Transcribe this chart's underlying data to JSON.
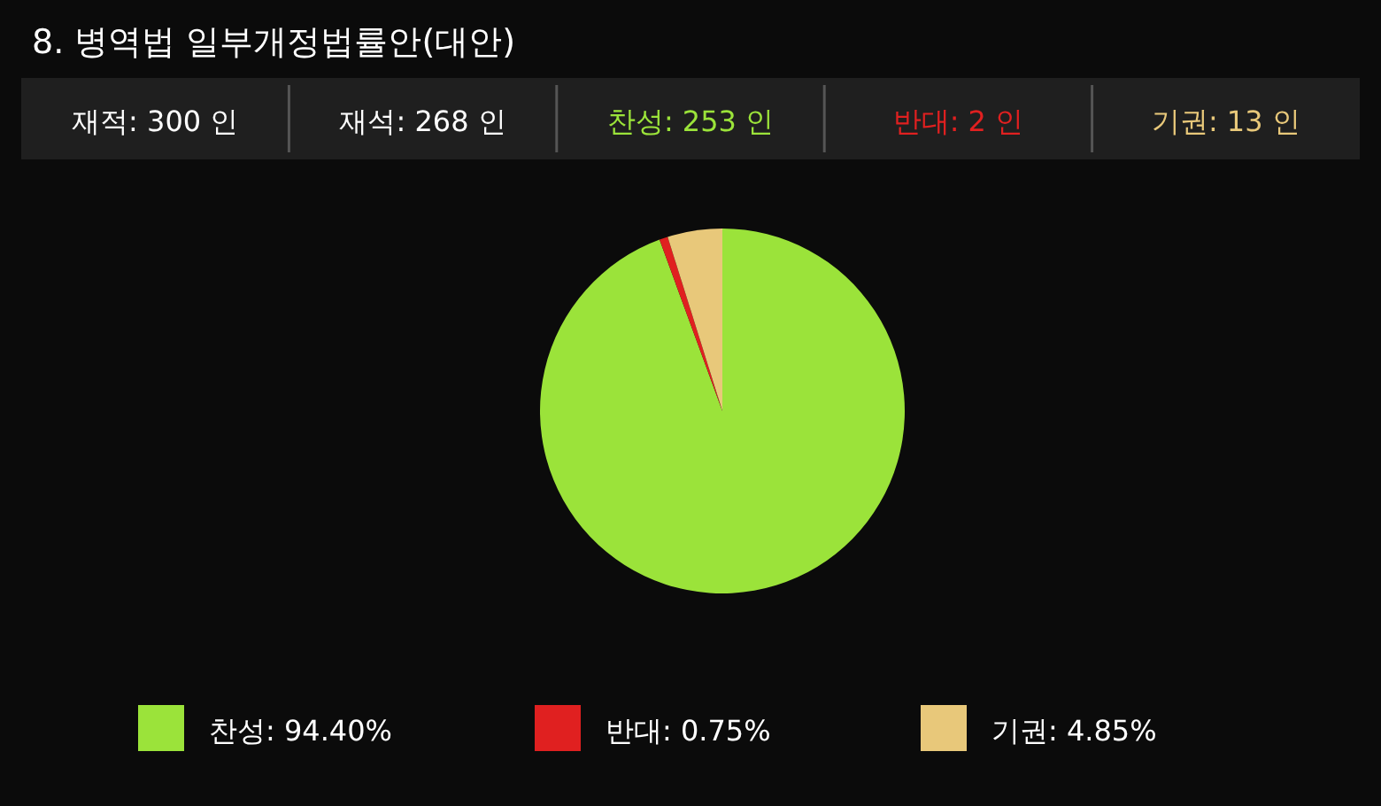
{
  "chart_data": {
    "type": "pie",
    "title": "8. 병역법 일부개정법률안(대안)",
    "annotations": [
      "재적: 300 인",
      "재석: 268 인",
      "찬성: 253 인",
      "반대:  2 인",
      "기권: 13 인"
    ],
    "categories": [
      "찬성",
      "반대",
      "기권"
    ],
    "values": [
      94.4,
      0.75,
      4.85
    ],
    "value_labels": [
      "94.40%",
      "0.75%",
      "4.85%"
    ],
    "colors": [
      "#9be33a",
      "#e02020",
      "#e8c87a"
    ],
    "legend": "bottom"
  }
}
